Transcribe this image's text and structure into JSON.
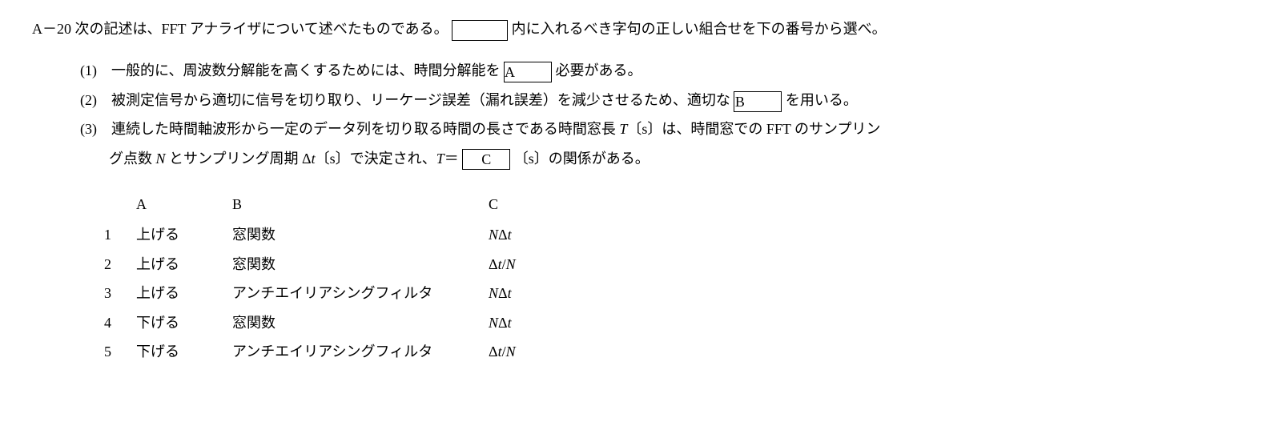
{
  "question": {
    "number": "A－20",
    "intro_before_blank": "次の記述は、FFT アナライザについて述べたものである。",
    "intro_after_blank": "内に入れるべき字句の正しい組合せを下の番号から選べ。"
  },
  "statements": {
    "s1": {
      "num": "(1)",
      "before": "一般的に、周波数分解能を高くするためには、時間分解能を",
      "blank": "A",
      "after": "必要がある。"
    },
    "s2": {
      "num": "(2)",
      "before": "被測定信号から適切に信号を切り取り、リーケージ誤差（漏れ誤差）を減少させるため、適切な",
      "blank": "B",
      "after": "を用いる。"
    },
    "s3": {
      "num": "(3)",
      "line1_before": "連続した時間軸波形から一定のデータ列を切り取る時間の長さである時間窓長 ",
      "line1_T": "T",
      "line1_unit": "〔s〕は、時間窓での FFT のサンプリン",
      "line2_before": "グ点数 ",
      "line2_N": "N",
      "line2_mid": " とサンプリング周期 ",
      "line2_dt": "Δt",
      "line2_unit": "〔s〕で決定され、",
      "line2_Teq": "T",
      "line2_eq": "＝",
      "blank": "C",
      "line2_after": "〔s〕の関係がある。"
    }
  },
  "headers": {
    "a": "A",
    "b": "B",
    "c": "C"
  },
  "options": {
    "r1": {
      "num": "1",
      "a": "上げる",
      "b": "窓関数",
      "c": "NΔt"
    },
    "r2": {
      "num": "2",
      "a": "上げる",
      "b": "窓関数",
      "c": "Δt/N"
    },
    "r3": {
      "num": "3",
      "a": "上げる",
      "b": "アンチエイリアシングフィルタ",
      "c": "NΔt"
    },
    "r4": {
      "num": "4",
      "a": "下げる",
      "b": "窓関数",
      "c": "NΔt"
    },
    "r5": {
      "num": "5",
      "a": "下げる",
      "b": "アンチエイリアシングフィルタ",
      "c": "Δt/N"
    }
  }
}
